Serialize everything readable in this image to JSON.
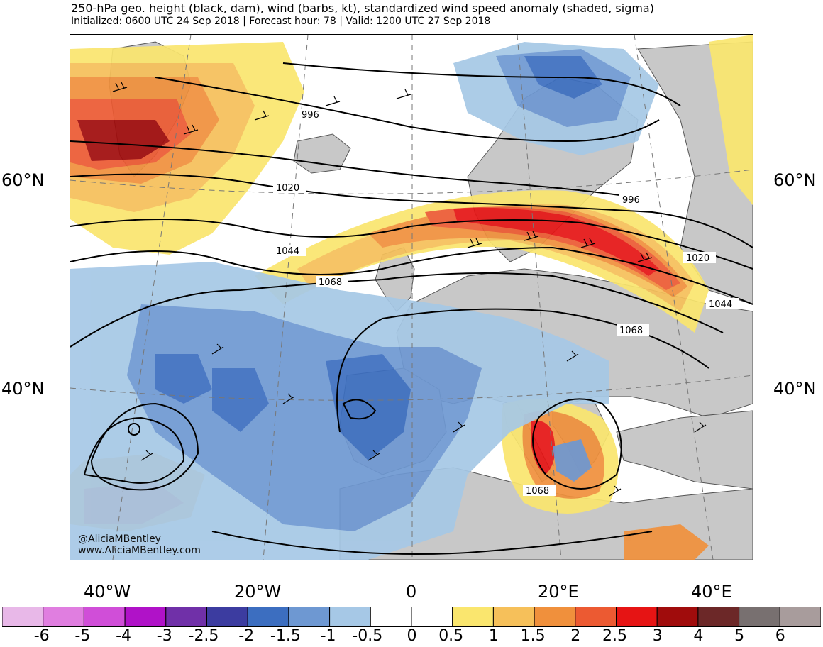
{
  "header": {
    "title": "250-hPa geo. height (black, dam), wind (barbs, kt), standardized wind speed anomaly (shaded, sigma)",
    "subtitle": "Initialized: 0600 UTC 24 Sep 2018 | Forecast hour: 78 | Valid: 1200 UTC 27 Sep 2018"
  },
  "map": {
    "lat_labels": [
      "60°N",
      "40°N"
    ],
    "lon_labels": [
      "40°W",
      "20°W",
      "0",
      "20°E",
      "40°E"
    ],
    "contour_labels": [
      "996",
      "1020",
      "1044",
      "1068",
      "996",
      "1020",
      "1044",
      "1068",
      "1068"
    ],
    "credit_line1": "@AliciaMBentley",
    "credit_line2": "www.AliciaMBentley.com",
    "land_color": "#c8c8c8",
    "ocean_color": "#ffffff"
  },
  "colorbar": {
    "labels": [
      "-6",
      "-5",
      "-4",
      "-3",
      "-2.5",
      "-2",
      "-1.5",
      "-1",
      "-0.5",
      "0",
      "0.5",
      "1",
      "1.5",
      "2",
      "2.5",
      "3",
      "4",
      "5",
      "6"
    ],
    "colors": [
      "#e8b8e8",
      "#e07ee0",
      "#d04ed8",
      "#b012c8",
      "#7030a8",
      "#3c3ca0",
      "#3c6ec0",
      "#6e98d2",
      "#a6c8e6",
      "#ffffff",
      "#ffffff",
      "#fae66e",
      "#f6c05a",
      "#f0903c",
      "#ec5a32",
      "#e61414",
      "#a00c0c",
      "#6c2828",
      "#787070",
      "#a89c9c"
    ]
  }
}
